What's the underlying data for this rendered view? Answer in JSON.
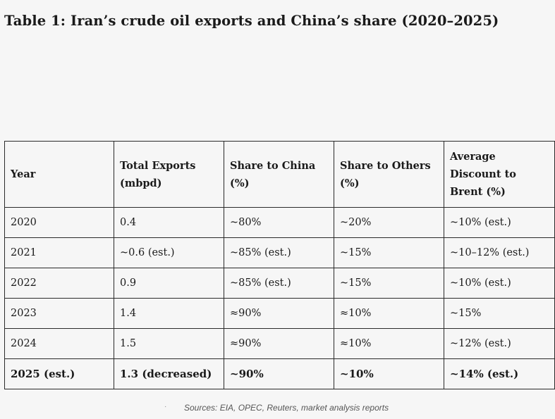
{
  "title": "Table 1: Iran’s crude oil exports and China’s share (2020–2025)",
  "table": {
    "headers": [
      "Year",
      "Total Exports (mbpd)",
      "Share to China (%)",
      "Share to Others (%)",
      "Average Discount to Brent (%)"
    ],
    "rows": [
      [
        "2020",
        "0.4",
        "~80%",
        "~20%",
        "~10% (est.)"
      ],
      [
        "2021",
        "~0.6 (est.)",
        "~85% (est.)",
        "~15%",
        "~10–12% (est.)"
      ],
      [
        "2022",
        "0.9",
        "~85% (est.)",
        "~15%",
        "~10% (est.)"
      ],
      [
        "2023",
        "1.4",
        "≈90%",
        "≈10%",
        "~15%"
      ],
      [
        "2024",
        "1.5",
        "≈90%",
        "≈10%",
        "~12% (est.)"
      ],
      [
        "2025 (est.)",
        "1.3 (decreased)",
        "~90%",
        "~10%",
        "~14% (est.)"
      ]
    ]
  },
  "source": {
    "bullet": "·",
    "text": "Sources: EIA, OPEC, Reuters, market analysis reports"
  }
}
